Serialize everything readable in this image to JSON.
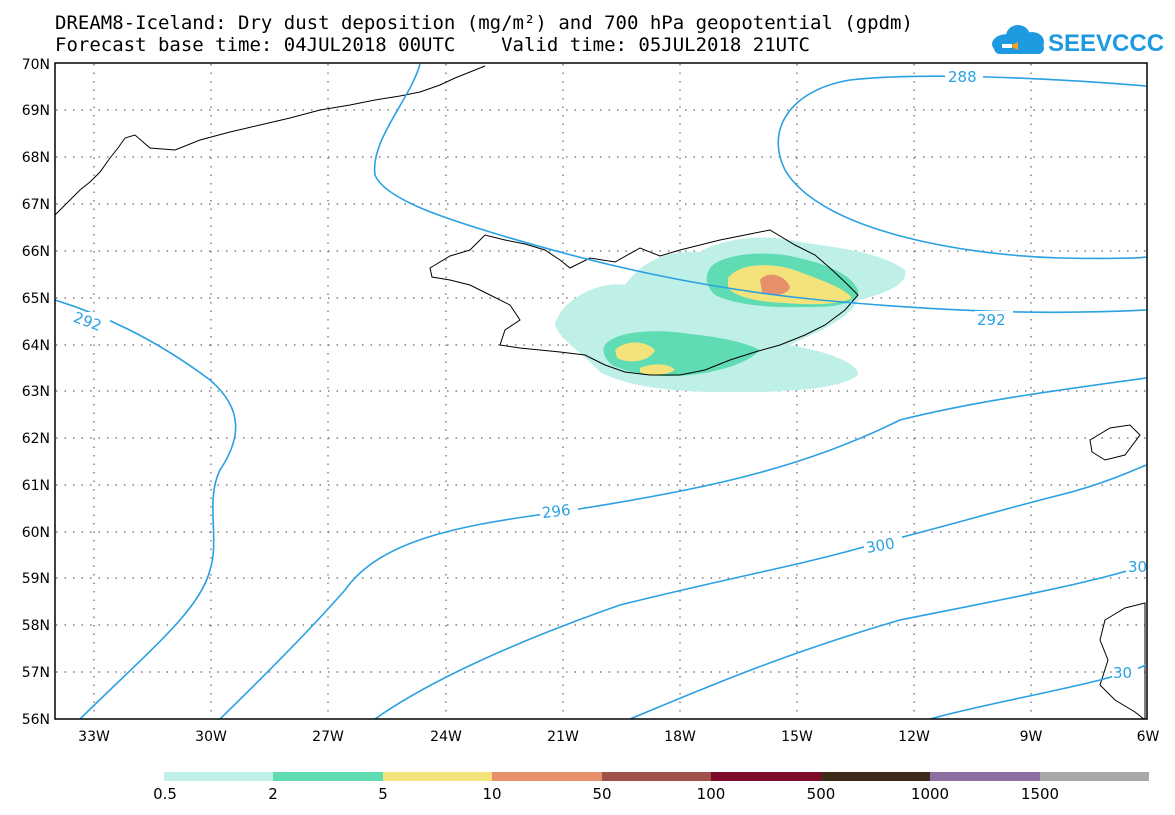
{
  "header": {
    "title_line1": "DREAM8-Iceland: Dry dust deposition (mg/m²) and 700 hPa geopotential (gpdm)",
    "title_line2": "Forecast base time: 04JUL2018 00UTC    Valid time: 05JUL2018 21UTC",
    "logo_text": "SEEVCCC"
  },
  "map": {
    "lat_labels": [
      "70N",
      "69N",
      "68N",
      "67N",
      "66N",
      "65N",
      "64N",
      "63N",
      "62N",
      "61N",
      "60N",
      "59N",
      "58N",
      "57N",
      "56N"
    ],
    "lon_labels": [
      "33W",
      "30W",
      "27W",
      "24W",
      "21W",
      "18W",
      "15W",
      "12W",
      "9W",
      "6W"
    ],
    "contour_labels": [
      "288",
      "292",
      "292",
      "296",
      "300",
      "30",
      "30"
    ],
    "colors": {
      "contour": "#2aa1e2",
      "coast": "#000000",
      "grid": "#555555"
    }
  },
  "legend": {
    "thresholds": [
      "0.5",
      "2",
      "5",
      "10",
      "50",
      "100",
      "500",
      "1000",
      "1500"
    ],
    "colors": [
      "#bff0e8",
      "#5fdcb4",
      "#f4e37a",
      "#e8906c",
      "#a05248",
      "#7d0a2a",
      "#3d2a1a",
      "#8c6fa0",
      "#a8a8a8"
    ]
  }
}
